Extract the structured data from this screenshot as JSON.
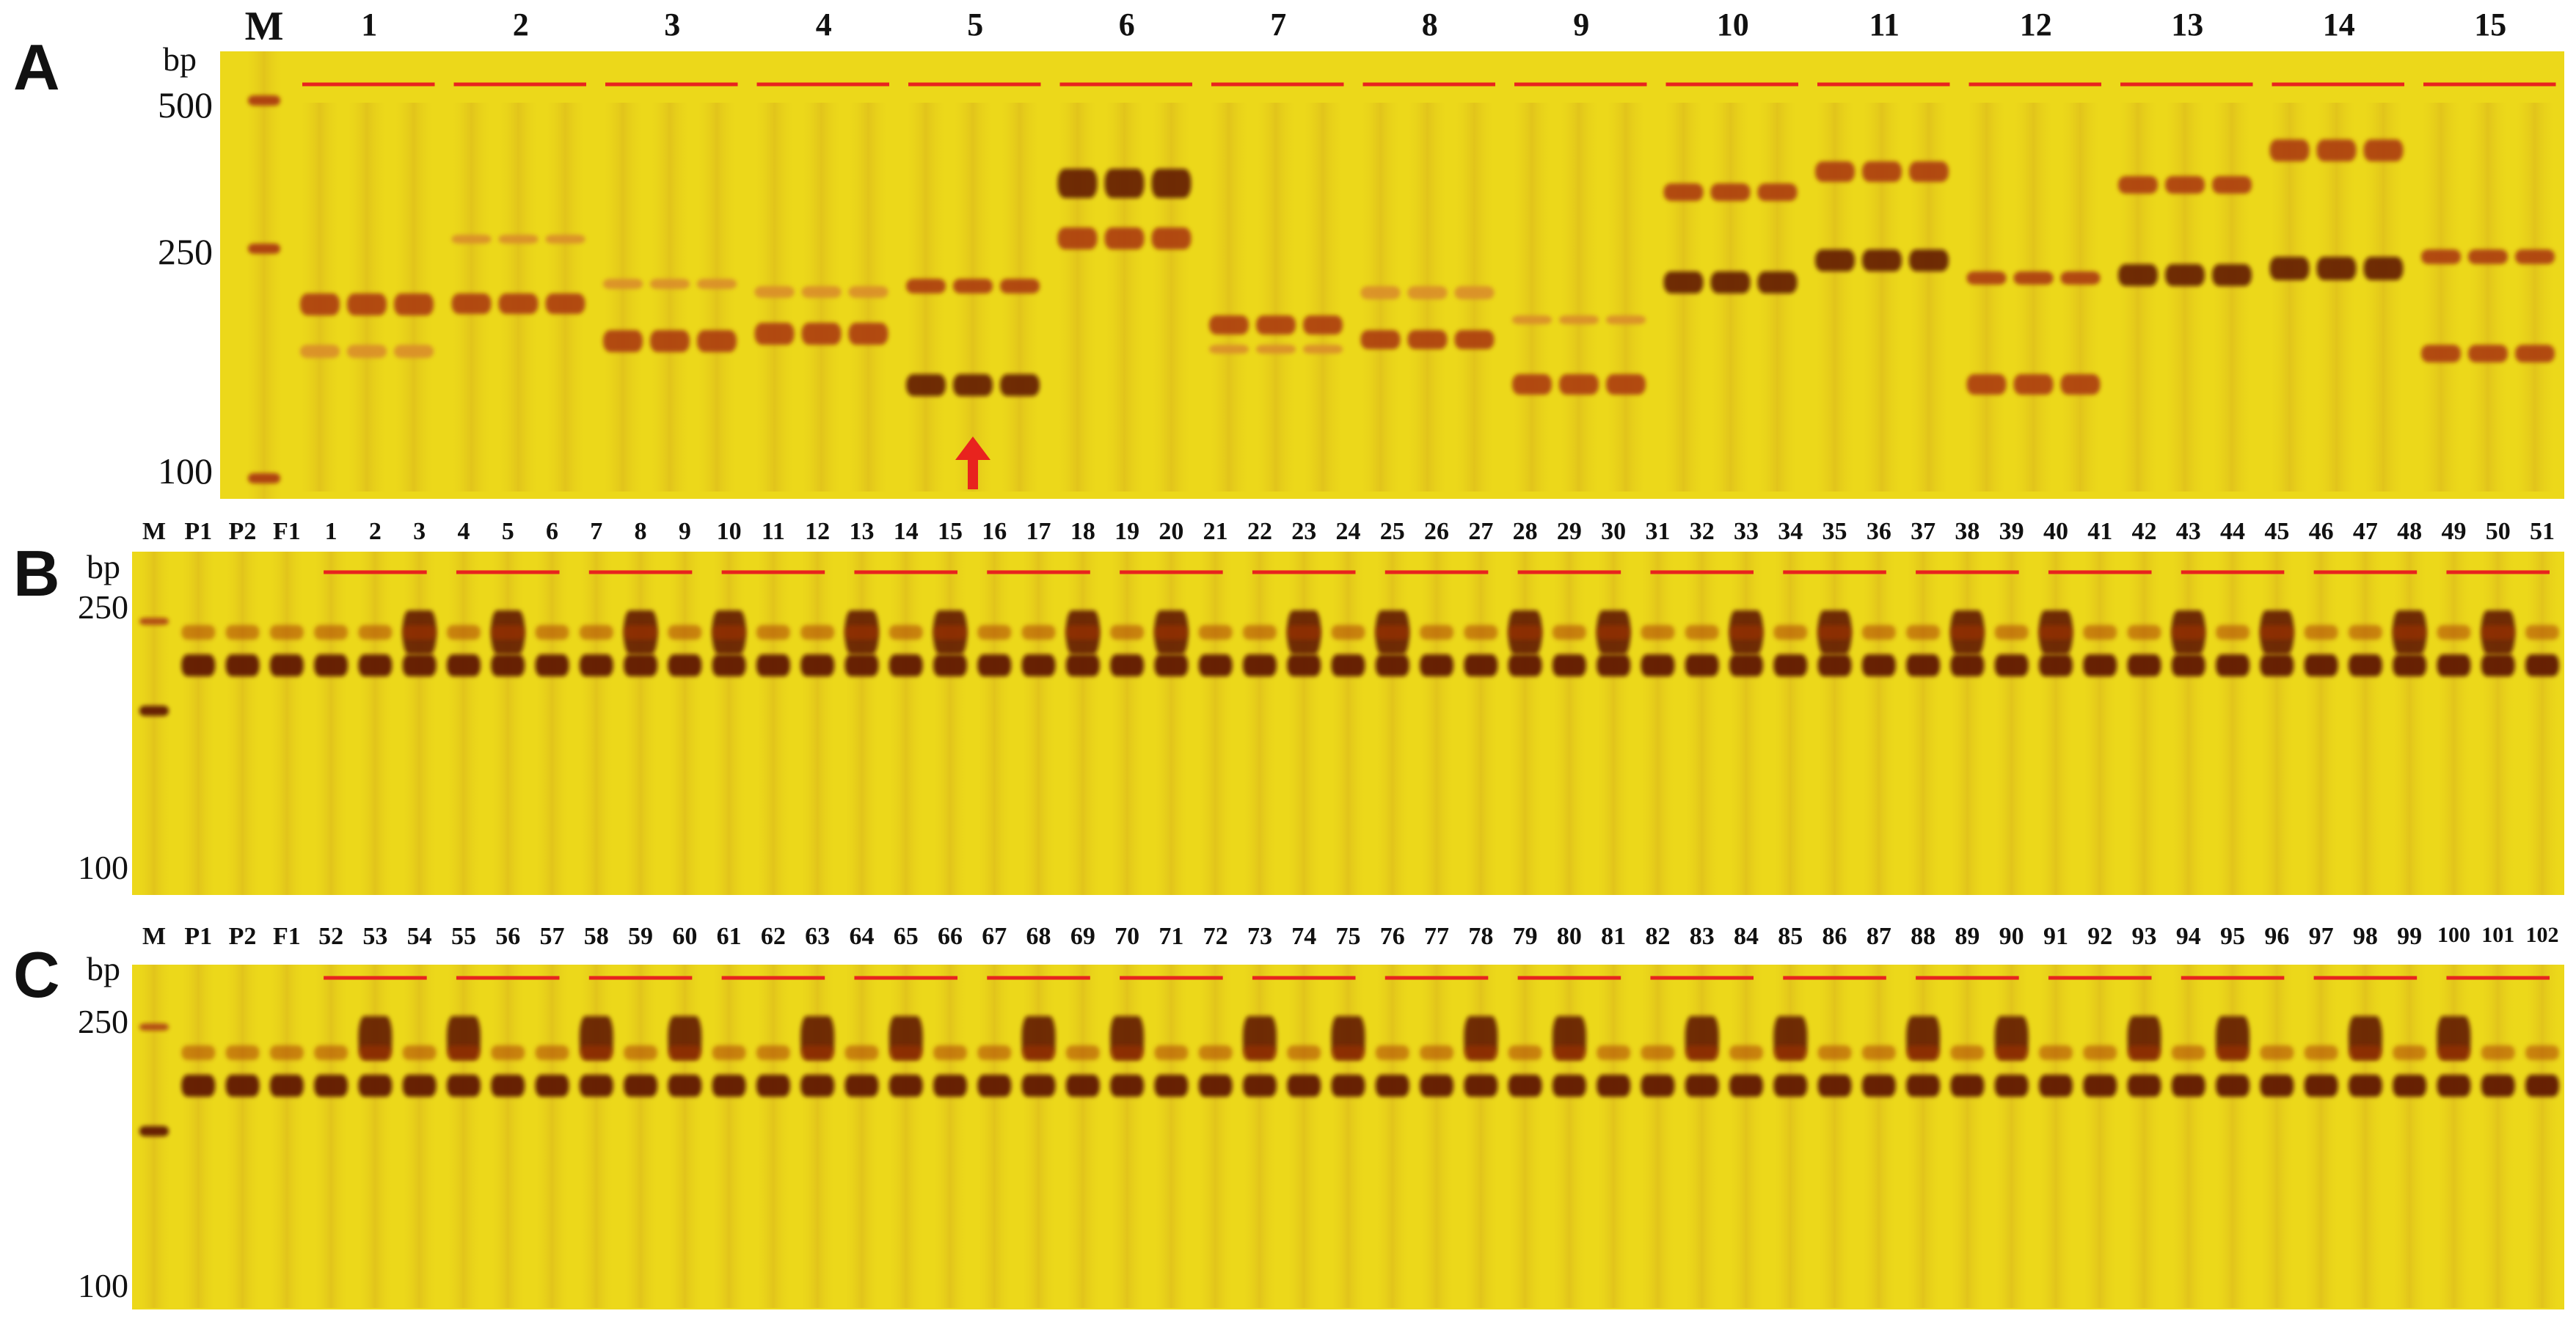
{
  "panels": [
    {
      "id": "A",
      "letter": "A",
      "unit": "bp",
      "size_markers": [
        "500",
        "250",
        "100"
      ],
      "lane_labels": [
        "M",
        "1",
        "2",
        "3",
        "4",
        "5",
        "6",
        "7",
        "8",
        "9",
        "10",
        "11",
        "12",
        "13",
        "14",
        "15"
      ],
      "lane_kind": "triplet-groups",
      "arrow": {
        "lane_group": "5",
        "color": "#e8231e"
      }
    },
    {
      "id": "B",
      "letter": "B",
      "unit": "bp",
      "size_markers": [
        "250",
        "100"
      ],
      "lane_labels": [
        "M",
        "P1",
        "P2",
        "F1",
        "1",
        "2",
        "3",
        "4",
        "5",
        "6",
        "7",
        "8",
        "9",
        "10",
        "11",
        "12",
        "13",
        "14",
        "15",
        "16",
        "17",
        "18",
        "19",
        "20",
        "21",
        "22",
        "23",
        "24",
        "25",
        "26",
        "27",
        "28",
        "29",
        "30",
        "31",
        "32",
        "33",
        "34",
        "35",
        "36",
        "37",
        "38",
        "39",
        "40",
        "41",
        "42",
        "43",
        "44",
        "45",
        "46",
        "47",
        "48",
        "49",
        "50",
        "51"
      ],
      "lane_kind": "single-lanes"
    },
    {
      "id": "C",
      "letter": "C",
      "unit": "bp",
      "size_markers": [
        "250",
        "100"
      ],
      "lane_labels": [
        "M",
        "P1",
        "P2",
        "F1",
        "52",
        "53",
        "54",
        "55",
        "56",
        "57",
        "58",
        "59",
        "60",
        "61",
        "62",
        "63",
        "64",
        "65",
        "66",
        "67",
        "68",
        "69",
        "70",
        "71",
        "72",
        "73",
        "74",
        "75",
        "76",
        "77",
        "78",
        "79",
        "80",
        "81",
        "82",
        "83",
        "84",
        "85",
        "86",
        "87",
        "88",
        "89",
        "90",
        "91",
        "92",
        "93",
        "94",
        "95",
        "96",
        "97",
        "98",
        "99",
        "100",
        "101",
        "102"
      ],
      "lane_kind": "single-lanes"
    }
  ],
  "colors": {
    "gel": "#ecd81a",
    "band_dark": "#5a1206",
    "band_mid": "#a8330c",
    "band_light": "#d98a2a",
    "group_line": "#e8231e"
  }
}
